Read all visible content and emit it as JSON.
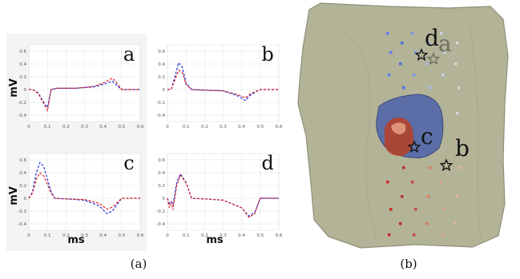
{
  "captions": {
    "left": "(a)",
    "right": "(b)"
  },
  "axis_labels": {
    "y": "mV",
    "x": "ms"
  },
  "panels": [
    {
      "id": "a",
      "label": "a"
    },
    {
      "id": "b",
      "label": "b"
    },
    {
      "id": "c",
      "label": "c"
    },
    {
      "id": "d",
      "label": "d"
    }
  ],
  "x_ticks": [
    "0",
    "0.1",
    "0.2",
    "0.3",
    "0.4",
    "0.5",
    "0.6"
  ],
  "y_ticks": [
    "0.6",
    "0.4",
    "0.2",
    "0",
    "-0.2",
    "-0.4"
  ],
  "map_labels": {
    "a": "a",
    "b": "b",
    "c": "c",
    "d": "d"
  },
  "colors": {
    "series_blue": "#2233dd",
    "series_red": "#dd2222",
    "torso": "#b2b397",
    "torso_edge": "#8f917a",
    "patch_blue": "#5b6ea8",
    "patch_red": "#b0422e"
  },
  "chart_data": [
    {
      "type": "line",
      "title": "a",
      "ylabel": "mV",
      "xlabel": "",
      "xlim": [
        0,
        0.6
      ],
      "ylim": [
        -0.5,
        0.7
      ],
      "series": [
        {
          "style": "dashed",
          "color": "#2233dd",
          "x": [
            0,
            0.02,
            0.05,
            0.08,
            0.1,
            0.12,
            0.15,
            0.25,
            0.35,
            0.4,
            0.45,
            0.48,
            0.5,
            0.6
          ],
          "y": [
            0,
            0,
            -0.05,
            -0.2,
            -0.28,
            0,
            0.02,
            0.02,
            0.04,
            0.08,
            0.13,
            0.05,
            0,
            0
          ]
        },
        {
          "style": "dashed",
          "color": "#dd2222",
          "x": [
            0,
            0.02,
            0.05,
            0.08,
            0.1,
            0.12,
            0.15,
            0.25,
            0.35,
            0.4,
            0.45,
            0.48,
            0.5,
            0.6
          ],
          "y": [
            0,
            0,
            -0.06,
            -0.22,
            -0.33,
            0,
            0.02,
            0.02,
            0.05,
            0.1,
            0.18,
            0.08,
            0,
            0
          ]
        }
      ]
    },
    {
      "type": "line",
      "title": "b",
      "ylabel": "",
      "xlabel": "",
      "xlim": [
        0,
        0.6
      ],
      "ylim": [
        -0.5,
        0.7
      ],
      "series": [
        {
          "style": "dashed",
          "color": "#2233dd",
          "x": [
            0,
            0.02,
            0.04,
            0.06,
            0.08,
            0.1,
            0.13,
            0.2,
            0.3,
            0.38,
            0.42,
            0.45,
            0.5,
            0.6
          ],
          "y": [
            0,
            0,
            0.2,
            0.42,
            0.35,
            0.1,
            0,
            -0.01,
            -0.02,
            -0.1,
            -0.17,
            -0.08,
            0,
            0
          ]
        },
        {
          "style": "dashed",
          "color": "#dd2222",
          "x": [
            0,
            0.02,
            0.04,
            0.06,
            0.08,
            0.1,
            0.13,
            0.2,
            0.3,
            0.38,
            0.42,
            0.45,
            0.5,
            0.6
          ],
          "y": [
            0,
            0,
            0.15,
            0.3,
            0.27,
            0.08,
            0,
            -0.01,
            -0.02,
            -0.08,
            -0.13,
            -0.06,
            0,
            0
          ]
        }
      ]
    },
    {
      "type": "line",
      "title": "c",
      "ylabel": "mV",
      "xlabel": "ms",
      "xlim": [
        0,
        0.6
      ],
      "ylim": [
        -0.5,
        0.7
      ],
      "series": [
        {
          "style": "dashed",
          "color": "#2233dd",
          "x": [
            0,
            0.02,
            0.04,
            0.06,
            0.08,
            0.1,
            0.12,
            0.14,
            0.2,
            0.3,
            0.38,
            0.42,
            0.45,
            0.5,
            0.6
          ],
          "y": [
            0,
            0.1,
            0.4,
            0.56,
            0.5,
            0.3,
            0.1,
            0,
            -0.01,
            -0.03,
            -0.12,
            -0.24,
            -0.2,
            0,
            0
          ]
        },
        {
          "style": "dashed",
          "color": "#dd2222",
          "x": [
            0,
            0.02,
            0.04,
            0.06,
            0.08,
            0.1,
            0.12,
            0.14,
            0.2,
            0.3,
            0.38,
            0.42,
            0.45,
            0.5,
            0.6
          ],
          "y": [
            0,
            0.08,
            0.3,
            0.4,
            0.35,
            0.22,
            0.08,
            0,
            -0.01,
            -0.02,
            -0.08,
            -0.17,
            -0.14,
            0,
            0
          ]
        }
      ]
    },
    {
      "type": "line",
      "title": "d",
      "ylabel": "",
      "xlabel": "ms",
      "xlim": [
        0,
        0.6
      ],
      "ylim": [
        -0.5,
        0.7
      ],
      "series": [
        {
          "style": "dashed",
          "color": "#2233dd",
          "x": [
            0,
            0.01,
            0.02,
            0.03,
            0.05,
            0.07,
            0.1,
            0.13,
            0.2,
            0.3,
            0.4,
            0.44,
            0.47,
            0.5,
            0.6
          ],
          "y": [
            0,
            -0.08,
            -0.05,
            -0.1,
            0.25,
            0.38,
            0.25,
            0,
            -0.01,
            -0.03,
            -0.15,
            -0.28,
            -0.22,
            0,
            0
          ]
        },
        {
          "style": "dashed",
          "color": "#dd2222",
          "x": [
            0,
            0.01,
            0.02,
            0.03,
            0.05,
            0.07,
            0.1,
            0.13,
            0.2,
            0.3,
            0.4,
            0.44,
            0.47,
            0.5,
            0.6
          ],
          "y": [
            0,
            -0.15,
            -0.05,
            -0.18,
            0.2,
            0.36,
            0.24,
            0,
            -0.01,
            -0.03,
            -0.15,
            -0.3,
            -0.24,
            0,
            0
          ]
        }
      ]
    }
  ]
}
